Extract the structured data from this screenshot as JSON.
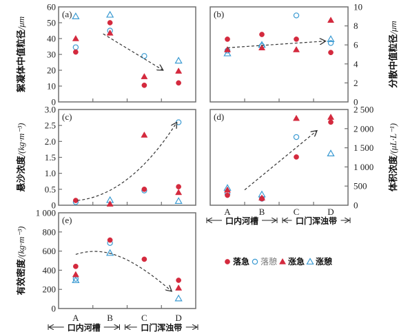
{
  "colors": {
    "red": "#d42a3e",
    "blue": "#3a9ad2",
    "frame": "#6e6e6e",
    "arrow": "#333333"
  },
  "legend": [
    {
      "key": "ebb_max",
      "label": "落急",
      "marker": "circle",
      "filled": true,
      "color": "red"
    },
    {
      "key": "ebb_slack",
      "label": "落憩",
      "marker": "circle",
      "filled": false,
      "color": "blue"
    },
    {
      "key": "flood_max",
      "label": "涨急",
      "marker": "triangle",
      "filled": true,
      "color": "red"
    },
    {
      "key": "flood_slack",
      "label": "涨憩",
      "marker": "triangle",
      "filled": false,
      "color": "blue"
    }
  ],
  "regions": [
    {
      "label": "口内河槽",
      "categories": [
        "A",
        "B"
      ]
    },
    {
      "label": "口门浑浊带",
      "categories": [
        "C",
        "D"
      ]
    }
  ],
  "chart_data": [
    {
      "id": "a",
      "type": "scatter",
      "panel_label": "(a)",
      "categories": [
        "A",
        "B",
        "C",
        "D"
      ],
      "ylabel": "絮凝体中值粒径",
      "yunit": "/μm",
      "ylim": [
        0,
        60
      ],
      "yticks": [
        0,
        10,
        20,
        30,
        40,
        50,
        60
      ],
      "ytick_labels": [
        "0",
        "10",
        "20",
        "30",
        "40",
        "50",
        "60"
      ],
      "yaxis_side": "left",
      "series": [
        {
          "key": "ebb_max",
          "name": "落急",
          "values": [
            31.5,
            50,
            10.5,
            12
          ]
        },
        {
          "key": "ebb_slack",
          "name": "落憩",
          "values": [
            34.5,
            45,
            29,
            null
          ]
        },
        {
          "key": "flood_max",
          "name": "涨急",
          "values": [
            40,
            43.5,
            16,
            19.5
          ]
        },
        {
          "key": "flood_slack",
          "name": "涨憩",
          "values": [
            54,
            55,
            null,
            26
          ]
        }
      ],
      "trend": {
        "shape": "line",
        "from": [
          0.8,
          43
        ],
        "to": [
          2.55,
          20
        ],
        "note": "decreasing"
      },
      "show_xlabels": false
    },
    {
      "id": "b",
      "type": "scatter",
      "panel_label": "(b)",
      "categories": [
        "A",
        "B",
        "C",
        "D"
      ],
      "ylabel": "分散中值粒径",
      "yunit": "/μm",
      "ylim": [
        0,
        10
      ],
      "yticks": [
        0,
        2,
        4,
        6,
        8,
        10
      ],
      "ytick_labels": [
        "0",
        "2",
        "4",
        "6",
        "8",
        "10"
      ],
      "yaxis_side": "right",
      "series": [
        {
          "key": "ebb_max",
          "name": "落急",
          "values": [
            6.6,
            7.1,
            6.6,
            5.2
          ]
        },
        {
          "key": "ebb_slack",
          "name": "落憩",
          "values": [
            5.4,
            5.9,
            9.1,
            6.2
          ]
        },
        {
          "key": "flood_max",
          "name": "涨急",
          "values": [
            5.5,
            5.7,
            5.5,
            8.6
          ]
        },
        {
          "key": "flood_slack",
          "name": "涨憩",
          "values": [
            5.1,
            6.0,
            null,
            6.6
          ]
        }
      ],
      "trend": {
        "shape": "line",
        "from": [
          0,
          5.7
        ],
        "to": [
          2.85,
          6.4
        ],
        "note": "slightly increasing"
      },
      "show_xlabels": false
    },
    {
      "id": "c",
      "type": "scatter",
      "panel_label": "(c)",
      "categories": [
        "A",
        "B",
        "C",
        "D"
      ],
      "ylabel": "悬沙浓度",
      "yunit": "/(kg·m⁻³)",
      "ylim": [
        0,
        3.0
      ],
      "yticks": [
        0,
        0.5,
        1.0,
        1.5,
        2.0,
        2.5,
        3.0
      ],
      "ytick_labels": [
        "0",
        "0.5",
        "1.0",
        "1.5",
        "2.0",
        "2.5",
        "3.0"
      ],
      "yaxis_side": "left",
      "series": [
        {
          "key": "ebb_max",
          "name": "落急",
          "values": [
            0.15,
            null,
            0.5,
            0.58
          ]
        },
        {
          "key": "ebb_slack",
          "name": "落憩",
          "values": [
            0.1,
            null,
            0.46,
            2.6
          ]
        },
        {
          "key": "flood_max",
          "name": "涨急",
          "values": [
            null,
            0.04,
            2.2,
            0.4
          ]
        },
        {
          "key": "flood_slack",
          "name": "涨憩",
          "values": [
            null,
            0.16,
            null,
            0.13
          ]
        }
      ],
      "trend": {
        "shape": "curve",
        "points": [
          [
            0.05,
            0.15
          ],
          [
            1,
            0.25
          ],
          [
            2,
            1.0
          ],
          [
            2.95,
            2.6
          ]
        ],
        "note": "increasing, convex"
      },
      "show_xlabels": false
    },
    {
      "id": "d",
      "type": "scatter",
      "panel_label": "(d)",
      "categories": [
        "A",
        "B",
        "C",
        "D"
      ],
      "ylabel": "体积浓度",
      "yunit": "/(μL·L⁻¹)",
      "ylim": [
        0,
        2500
      ],
      "yticks": [
        0,
        500,
        1000,
        1500,
        2000,
        2500
      ],
      "ytick_labels": [
        "0",
        "500",
        "1 000",
        "1 500",
        "2 000",
        "2 500"
      ],
      "yaxis_side": "right",
      "series": [
        {
          "key": "ebb_max",
          "name": "落急",
          "values": [
            260,
            170,
            1260,
            2170
          ]
        },
        {
          "key": "ebb_slack",
          "name": "落憩",
          "values": [
            300,
            170,
            1780,
            null
          ]
        },
        {
          "key": "flood_max",
          "name": "涨急",
          "values": [
            400,
            190,
            2270,
            2300
          ]
        },
        {
          "key": "flood_slack",
          "name": "涨憩",
          "values": [
            450,
            280,
            null,
            1350
          ]
        }
      ],
      "trend": {
        "shape": "line",
        "from": [
          0.5,
          400
        ],
        "to": [
          2.6,
          1950
        ],
        "note": "increasing"
      },
      "show_xlabels": true
    },
    {
      "id": "e",
      "type": "scatter",
      "panel_label": "(e)",
      "categories": [
        "A",
        "B",
        "C",
        "D"
      ],
      "ylabel": "有效密度",
      "yunit": "/(kg·m⁻³)",
      "ylim": [
        0,
        1000
      ],
      "yticks": [
        0,
        200,
        400,
        600,
        800,
        1000
      ],
      "ytick_labels": [
        "0",
        "200",
        "400",
        "600",
        "800",
        "1 000"
      ],
      "yaxis_side": "left",
      "series": [
        {
          "key": "ebb_max",
          "name": "落急",
          "values": [
            440,
            715,
            515,
            295
          ]
        },
        {
          "key": "ebb_slack",
          "name": "落憩",
          "values": [
            310,
            685,
            null,
            null
          ]
        },
        {
          "key": "flood_max",
          "name": "涨急",
          "values": [
            355,
            null,
            null,
            215
          ]
        },
        {
          "key": "flood_slack",
          "name": "涨憩",
          "values": [
            295,
            580,
            null,
            105
          ]
        }
      ],
      "trend": {
        "shape": "curve",
        "points": [
          [
            0,
            565
          ],
          [
            0.75,
            650
          ],
          [
            1.5,
            580
          ],
          [
            2.8,
            180
          ]
        ],
        "note": "rise then fall"
      },
      "show_xlabels": true
    }
  ]
}
